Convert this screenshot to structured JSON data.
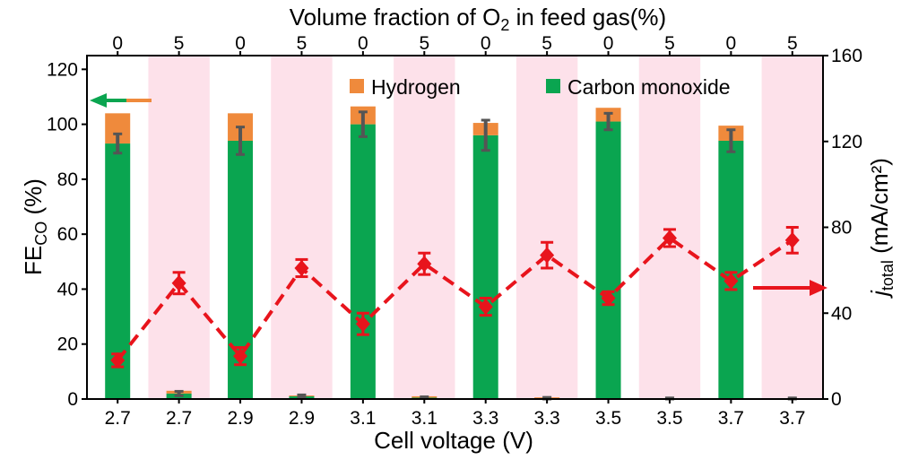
{
  "chart_data": {
    "type": "bar",
    "categories": [
      "2.7",
      "2.7",
      "2.9",
      "2.9",
      "3.1",
      "3.1",
      "3.3",
      "3.3",
      "3.5",
      "3.5",
      "3.7",
      "3.7"
    ],
    "top_categories": [
      "0",
      "5",
      "0",
      "5",
      "0",
      "5",
      "0",
      "5",
      "0",
      "5",
      "0",
      "5"
    ],
    "xlabel": "Cell voltage (V)",
    "top_xlabel": {
      "text": "Volume fraction of O",
      "sub": "2",
      "suffix": " in feed gas(%)"
    },
    "ylabel": {
      "text": "FE",
      "sub": "CO",
      "suffix": " (%)"
    },
    "y2label": {
      "text": "j",
      "sub": "total",
      "suffix": " (mA/cm²)"
    },
    "ylim": [
      0,
      125
    ],
    "y2lim": [
      0,
      160
    ],
    "yticks": [
      0,
      20,
      40,
      60,
      80,
      100,
      120
    ],
    "y2ticks": [
      0,
      40,
      80,
      120,
      160
    ],
    "grid": false,
    "legend": "top",
    "shaded": [
      false,
      true,
      false,
      true,
      false,
      true,
      false,
      true,
      false,
      true,
      false,
      true
    ],
    "colors": {
      "shading": "#fde1ea",
      "bar_error": "#555555"
    },
    "series": [
      {
        "name": "Carbon monoxide",
        "type": "bar",
        "axis": "left",
        "color": "#0aa550",
        "values": [
          93,
          2,
          94,
          1,
          100,
          0.5,
          96,
          0.3,
          101,
          0.2,
          94,
          0.2
        ],
        "error": [
          3.5,
          0.8,
          5,
          0.5,
          4.5,
          0.3,
          5.5,
          0.3,
          3,
          0.2,
          4,
          0.2
        ]
      },
      {
        "name": "Hydrogen",
        "type": "bar",
        "stacked": true,
        "axis": "left",
        "color": "#ef8a3c",
        "values": [
          11,
          1,
          10,
          0.3,
          6.5,
          0.5,
          4.5,
          0.3,
          5,
          0.1,
          5.5,
          0.1
        ]
      },
      {
        "type": "line",
        "axis": "right",
        "color": "#e8141c",
        "values": [
          18,
          54,
          20,
          61,
          35,
          63,
          43,
          67,
          47,
          75,
          55,
          74
        ],
        "error": [
          3,
          5,
          4,
          4,
          5,
          5,
          4,
          6,
          3,
          4,
          4,
          6
        ]
      }
    ]
  }
}
